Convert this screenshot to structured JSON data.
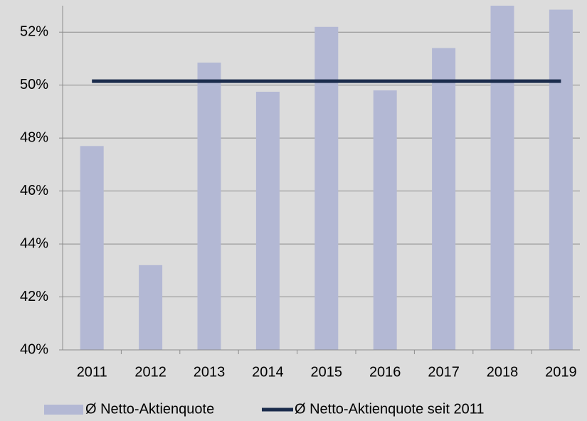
{
  "chart_data": {
    "type": "bar",
    "categories": [
      "2011",
      "2012",
      "2013",
      "2014",
      "2015",
      "2016",
      "2017",
      "2018",
      "2019"
    ],
    "series": [
      {
        "name": "Ø Netto-Aktienquote",
        "type": "bar",
        "color": "#b3b8d4",
        "values": [
          47.7,
          43.2,
          50.85,
          49.75,
          52.2,
          49.8,
          51.4,
          53.0,
          52.85
        ]
      },
      {
        "name": "Ø Netto-Aktienquote seit 2011",
        "type": "line",
        "color": "#1b2c4c",
        "values": [
          50.15,
          50.15,
          50.15,
          50.15,
          50.15,
          50.15,
          50.15,
          50.15,
          50.15
        ]
      }
    ],
    "ylim": [
      40,
      53
    ],
    "yticks": [
      {
        "value": 40,
        "label": "40%"
      },
      {
        "value": 42,
        "label": "42%"
      },
      {
        "value": 44,
        "label": "44%"
      },
      {
        "value": 46,
        "label": "46%"
      },
      {
        "value": 48,
        "label": "48%"
      },
      {
        "value": 50,
        "label": "50%"
      },
      {
        "value": 52,
        "label": "52%"
      }
    ],
    "grid": true,
    "legend": "bottom"
  }
}
